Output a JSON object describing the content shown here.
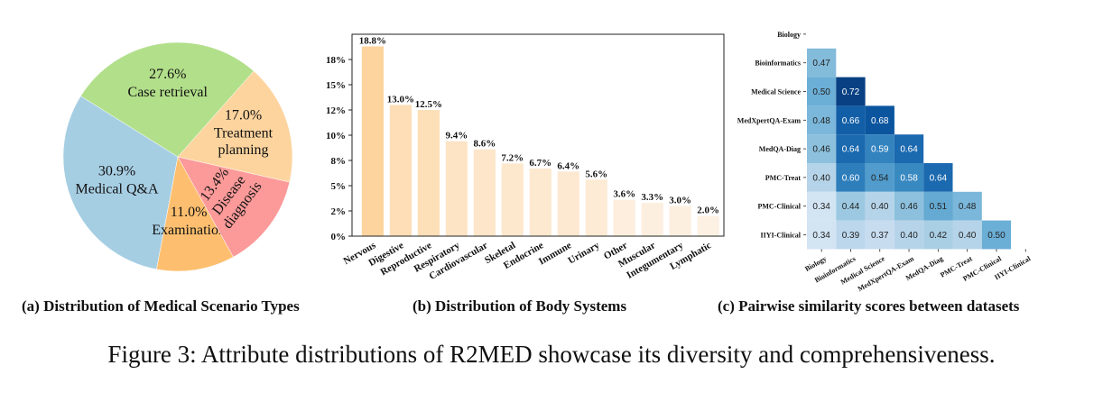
{
  "charts": [
    {
      "type": "pie",
      "slices": [
        {
          "label": "Case retrieval",
          "pct_label": "27.6%",
          "value": 27.6,
          "color": "#b2df8a"
        },
        {
          "label": "Medical Q&A",
          "pct_label": "30.9%",
          "value": 30.9,
          "color": "#a6cee3"
        },
        {
          "label": "Examination",
          "pct_label": "11.0%",
          "value": 11.0,
          "color": "#fdbf6f"
        },
        {
          "label": "Disease\ndiagnosis",
          "pct_label": "13.4%",
          "value": 13.4,
          "color": "#fb9a99"
        },
        {
          "label": "Treatment\nplanning",
          "pct_label": "17.0%",
          "value": 17.0,
          "color": "#fdd49e"
        }
      ]
    },
    {
      "type": "bar",
      "categories": [
        "Nervous",
        "Digestive",
        "Reproductive",
        "Respiratory",
        "Cardiovascular",
        "Skeletal",
        "Endocrine",
        "Immune",
        "Urinary",
        "Other",
        "Muscular",
        "Integumentary",
        "Lymphatic"
      ],
      "values": [
        18.8,
        13.0,
        12.5,
        9.4,
        8.6,
        7.2,
        6.7,
        6.4,
        5.6,
        3.6,
        3.3,
        3.0,
        2.0
      ],
      "data_labels": [
        "18.8%",
        "13.0%",
        "12.5%",
        "9.4%",
        "8.6%",
        "7.2%",
        "6.7%",
        "6.4%",
        "5.6%",
        "3.6%",
        "3.3%",
        "3.0%",
        "2.0%"
      ],
      "ylim": [
        0,
        20
      ],
      "yticks": [
        0,
        2.5,
        5,
        7.5,
        10,
        12.5,
        15,
        17.5
      ],
      "ytick_labels": [
        "0%",
        "2%",
        "5%",
        "8%",
        "10%",
        "12%",
        "15%",
        "18%"
      ],
      "color_high": "#fdd49e",
      "color_low": "#fdf1e4"
    },
    {
      "type": "heatmap",
      "labels": [
        "Biology",
        "Bioinformatics",
        "Medical Science",
        "MedXpertQA-Exam",
        "MedQA-Diag",
        "PMC-Treat",
        "PMC-Clinical",
        "IIYI-Clinical"
      ],
      "matrix": [
        [],
        [
          0.47
        ],
        [
          0.5,
          0.72
        ],
        [
          0.48,
          0.66,
          0.68
        ],
        [
          0.46,
          0.64,
          0.59,
          0.64
        ],
        [
          0.4,
          0.6,
          0.54,
          0.58,
          0.64
        ],
        [
          0.34,
          0.44,
          0.4,
          0.46,
          0.51,
          0.48
        ],
        [
          0.34,
          0.39,
          0.37,
          0.4,
          0.42,
          0.4,
          0.5
        ]
      ],
      "colorscale": "Blues"
    }
  ],
  "subcaptions": {
    "a": "(a) Distribution of Medical Scenario Types",
    "b": "(b) Distribution of Body Systems",
    "c": "(c) Pairwise similarity scores between datasets"
  },
  "caption": "Figure 3: Attribute distributions of R2MED showcase its diversity and comprehensiveness."
}
